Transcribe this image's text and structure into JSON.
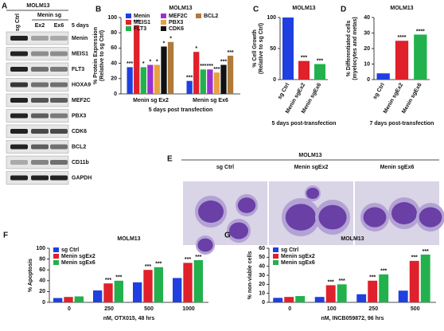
{
  "blot": {
    "label": "A",
    "title": "MOLM13",
    "lanes": [
      "sg Ctrl",
      "Ex2",
      "Ex6"
    ],
    "group": "Menin sg",
    "time": "5 days",
    "proteins": [
      "Menin",
      "MEIS1",
      "FLT3",
      "HOXA9",
      "MEF2C",
      "PBX3",
      "CDK6",
      "BCL2",
      "CD11b",
      "GAPDH"
    ]
  },
  "micrograph": {
    "label": "E",
    "title": "MOLM13",
    "captions": [
      "sg Ctrl",
      "Menin sgEx2",
      "Menin sgEx6"
    ]
  },
  "chart_data": [
    {
      "type": "bar",
      "label": "B",
      "title": "MOLM13",
      "ylabel": [
        "% Protein Expression",
        "(Relative to sg Ctrl)"
      ],
      "xlabel": "5 days post transfection",
      "categories": [
        "Menin sg Ex2",
        "Menin sg Ex6"
      ],
      "ylim": [
        0,
        100
      ],
      "yticks": [
        0,
        20,
        40,
        60,
        80,
        100
      ],
      "series": [
        {
          "name": "Menin",
          "color": "#1f3fe0",
          "values": [
            35,
            17
          ],
          "annotations": [
            "***",
            "***"
          ]
        },
        {
          "name": "MEIS1",
          "color": "#e0202a",
          "values": [
            90,
            55
          ],
          "annotations": [
            "***",
            "*"
          ]
        },
        {
          "name": "FLT3",
          "color": "#22b14c",
          "values": [
            35,
            32
          ],
          "annotations": [
            "*",
            "***"
          ]
        },
        {
          "name": "MEF2C",
          "color": "#9b30d0",
          "values": [
            38,
            32
          ],
          "annotations": [
            "*",
            "***"
          ]
        },
        {
          "name": "PBX3",
          "color": "#e8a040",
          "values": [
            38,
            28
          ],
          "annotations": [
            "*",
            "***"
          ]
        },
        {
          "name": "CDK6",
          "color": "#111111",
          "values": [
            62,
            38
          ],
          "annotations": [
            "*",
            "***"
          ]
        },
        {
          "name": "BCL2",
          "color": "#b07a3a",
          "values": [
            68,
            50
          ],
          "annotations": [
            "*",
            "***"
          ]
        }
      ]
    },
    {
      "type": "bar",
      "label": "C",
      "title": "MOLM13",
      "ylabel": [
        "% Cell Growth",
        "(Relative to sg Ctrl)"
      ],
      "xlabel": "5 days post-transfection",
      "categories": [
        "sg Ctrl",
        "Menin sgEx2",
        "Menin sgEx6"
      ],
      "values": [
        100,
        30,
        25
      ],
      "colors": [
        "#1f3fe0",
        "#e0202a",
        "#22b14c"
      ],
      "annotations": [
        null,
        "***",
        "***"
      ],
      "ylim": [
        0,
        100
      ],
      "yticks": [
        0,
        50,
        100
      ]
    },
    {
      "type": "bar",
      "label": "D",
      "title": "MOLM13",
      "ylabel": [
        "% Differentiated cells",
        "(myelocytes and metas)"
      ],
      "xlabel": "7 days post-transfection",
      "categories": [
        "sg Ctrl",
        "Menin sgEx2",
        "Menin sgEx6"
      ],
      "values": [
        4,
        25,
        29
      ],
      "colors": [
        "#1f3fe0",
        "#e0202a",
        "#22b14c"
      ],
      "annotations": [
        null,
        "****",
        "****"
      ],
      "ylim": [
        0,
        40
      ],
      "yticks": [
        0,
        10,
        20,
        30,
        40
      ]
    },
    {
      "type": "bar",
      "label": "F",
      "title": "MOLM13",
      "ylabel": [
        "% Apoptosis"
      ],
      "xlabel": "nM, OTX015, 48 hrs",
      "categories": [
        "0",
        "250",
        "500",
        "1000"
      ],
      "ylim": [
        0,
        100
      ],
      "yticks": [
        0,
        20,
        40,
        60,
        80,
        100
      ],
      "series": [
        {
          "name": "sg Ctrl",
          "color": "#1f3fe0",
          "values": [
            8,
            22,
            37,
            45
          ],
          "annotations": [
            null,
            null,
            null,
            null
          ]
        },
        {
          "name": "Menin sgEx2",
          "color": "#e0202a",
          "values": [
            10,
            35,
            60,
            73
          ],
          "annotations": [
            null,
            "***",
            "***",
            "***"
          ]
        },
        {
          "name": "Menin sgEx6",
          "color": "#22b14c",
          "values": [
            11,
            40,
            65,
            78
          ],
          "annotations": [
            null,
            "***",
            "***",
            "***"
          ]
        }
      ]
    },
    {
      "type": "bar",
      "label": "G",
      "title": "MOLM13",
      "ylabel": [
        "% non-viable cells"
      ],
      "xlabel": "nM, INCB059872, 96 hrs",
      "categories": [
        "0",
        "100",
        "250",
        "500"
      ],
      "ylim": [
        0,
        60
      ],
      "yticks": [
        0,
        10,
        20,
        30,
        40,
        50,
        60
      ],
      "series": [
        {
          "name": "sg Ctrl",
          "color": "#1f3fe0",
          "values": [
            5,
            6,
            9,
            13
          ],
          "annotations": [
            null,
            null,
            null,
            null
          ]
        },
        {
          "name": "Menin sgEx2",
          "color": "#e0202a",
          "values": [
            6,
            19,
            24,
            46
          ],
          "annotations": [
            null,
            "***",
            "***",
            "***"
          ]
        },
        {
          "name": "Menin sgEx6",
          "color": "#22b14c",
          "values": [
            7,
            20,
            31,
            53
          ],
          "annotations": [
            null,
            "***",
            "***",
            "***"
          ]
        }
      ]
    }
  ]
}
